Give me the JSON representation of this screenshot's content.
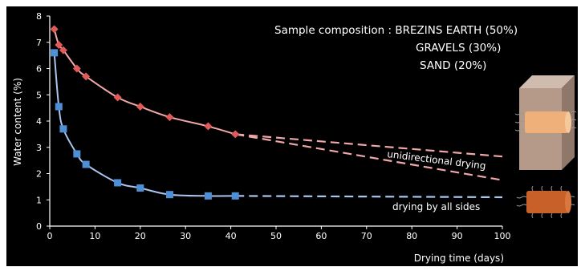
{
  "chart_data": {
    "type": "line",
    "xlabel": "Drying time (days)",
    "ylabel": "Water content (%)",
    "xlim": [
      0,
      100
    ],
    "ylim": [
      0,
      8
    ],
    "x_ticks": [
      "0",
      "10",
      "20",
      "30",
      "40",
      "50",
      "60",
      "70",
      "80",
      "90",
      "100"
    ],
    "y_ticks": [
      "0",
      "1",
      "2",
      "3",
      "4",
      "5",
      "6",
      "7",
      "8"
    ],
    "grid": false,
    "annotation": {
      "prefix": "Sample composition : ",
      "lines": [
        "BREZINS EARTH (50%)",
        "GRAVELS (30%)",
        "SAND (20%)"
      ]
    },
    "series": [
      {
        "name": "unidirectional drying",
        "marker": "diamond",
        "color": "#e05a5a",
        "line_color": "#f0a8a8",
        "x": [
          1,
          2,
          3,
          6,
          8,
          15,
          20,
          26.5,
          35,
          41
        ],
        "y": [
          7.5,
          6.9,
          6.7,
          6.0,
          5.7,
          4.9,
          4.55,
          4.15,
          3.8,
          3.5
        ],
        "extrapolation_upper": {
          "x": [
            41,
            100
          ],
          "y": [
            3.5,
            2.65
          ]
        },
        "extrapolation_lower": {
          "x": [
            41,
            100
          ],
          "y": [
            3.5,
            1.75
          ]
        }
      },
      {
        "name": "drying by all sides",
        "marker": "square",
        "color": "#4f8fd6",
        "line_color": "#a9c6ef",
        "x": [
          1,
          2,
          3,
          6,
          8,
          15,
          20,
          26.5,
          35,
          41
        ],
        "y": [
          6.6,
          4.55,
          3.7,
          2.75,
          2.35,
          1.65,
          1.45,
          1.2,
          1.15,
          1.15
        ],
        "extrapolation": {
          "x": [
            41,
            100
          ],
          "y": [
            1.15,
            1.1
          ]
        }
      }
    ]
  },
  "colors": {
    "background": "#000000",
    "axis": "#ffffff",
    "text": "#ffffff",
    "block_face": "#b59a8a",
    "block_top": "#d0bcae",
    "block_side": "#8f776a",
    "sample_light": "#f0b07a",
    "sample_dark": "#c8602a"
  },
  "icons": {
    "unidirectional": "sealed-block-with-sample-icon",
    "all_sides": "exposed-sample-cylinder-icon"
  }
}
